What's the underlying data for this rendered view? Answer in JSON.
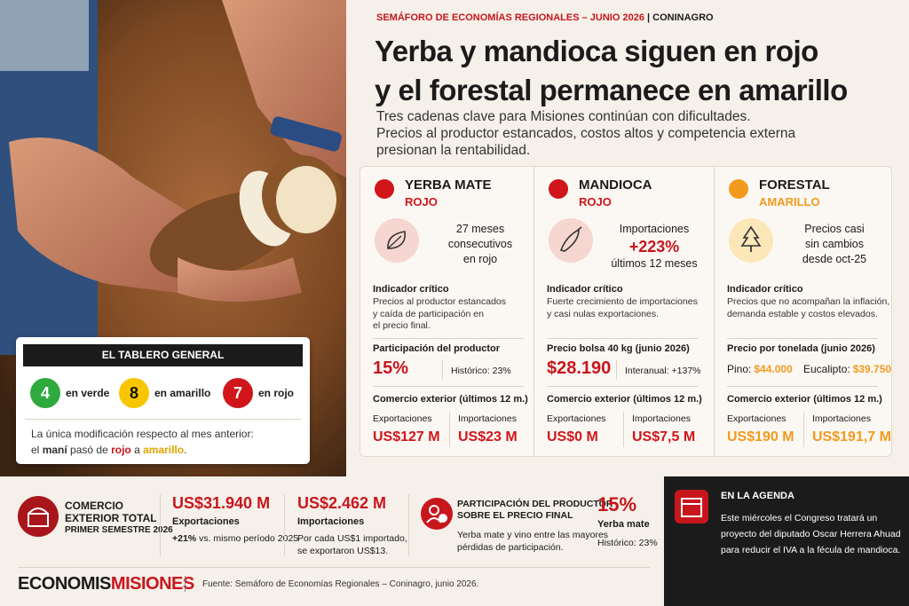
{
  "header": {
    "kicker": "SEMÁFORO DE ECONOMÍAS REGIONALES – JUNIO 2026",
    "source": "CONINAGRO",
    "title_lines": [
      "Yerba y mandioca siguen en rojo",
      "y el forestal permanece en amarillo"
    ],
    "subtitle_lines": [
      "Tres cadenas clave para Misiones continúan con dificultades.",
      "Precios al productor estancados, costos altos y competencia externa",
      "presionan la rentabilidad."
    ]
  },
  "cards": [
    {
      "name": "YERBA MATE",
      "status": "ROJO",
      "color": "#d0151b",
      "highlight_lines": [
        "27 meses",
        "consecutivos",
        "en rojo"
      ],
      "indicator_title": "Indicador crítico",
      "indicator_lines": [
        "Precios al productor estancados",
        "y caída de participación en",
        "el precio final."
      ],
      "metric_title": "Participación del productor",
      "metric_value": "15%",
      "metric_extra": "Histórico: 23%",
      "trade_title": "Comercio exterior (últimos 12 m.)",
      "export_label": "Exportaciones",
      "export_value": "US$127 M",
      "import_label": "Importaciones",
      "import_value": "US$23 M"
    },
    {
      "name": "MANDIOCA",
      "status": "ROJO",
      "color": "#d0151b",
      "highlight_lines": [
        "Importaciones",
        "+223%",
        "últimos 12 meses"
      ],
      "indicator_title": "Indicador crítico",
      "indicator_lines": [
        "Fuerte crecimiento de importaciones",
        "y casi nulas exportaciones."
      ],
      "metric_title": "Precio bolsa 40 kg (junio 2026)",
      "metric_value": "$28.190",
      "metric_extra": "Interanual: +137%",
      "trade_title": "Comercio exterior (últimos 12 m.)",
      "export_label": "Exportaciones",
      "export_value": "US$0 M",
      "import_label": "Importaciones",
      "import_value": "US$7,5 M"
    },
    {
      "name": "FORESTAL",
      "status": "AMARILLO",
      "color": "#f29a1d",
      "highlight_lines": [
        "Precios casi",
        "sin cambios",
        "desde oct-25"
      ],
      "indicator_title": "Indicador crítico",
      "indicator_lines": [
        "Precios que no acompañan la inflación,",
        "demanda estable y costos elevados."
      ],
      "metric_title": "Precio por tonelada (junio 2026)",
      "prices": [
        {
          "label": "Pino:",
          "value": "$44.000"
        },
        {
          "label": "Eucalipto:",
          "value": "$39.750"
        }
      ],
      "trade_title": "Comercio exterior (últimos 12 m.)",
      "export_label": "Exportaciones",
      "export_value": "US$190 M",
      "import_label": "Importaciones",
      "import_value": "US$191,7 M"
    }
  ],
  "tablero": {
    "title": "EL TABLERO GENERAL",
    "counts": [
      {
        "number": "4",
        "label": "en verde",
        "color": "#2eaa3f"
      },
      {
        "number": "8",
        "label": "en amarillo",
        "color": "#f7c600"
      },
      {
        "number": "7",
        "label": "en rojo",
        "color": "#d0151b"
      }
    ],
    "note_line": "La única modificación respecto al mes anterior:",
    "note_parts": [
      "el ",
      "maní",
      " pasó de ",
      "rojo",
      " a ",
      "amarillo",
      "."
    ]
  },
  "trade_total": {
    "title_lines": [
      "COMERCIO",
      "EXTERIOR TOTAL"
    ],
    "period": "PRIMER SEMESTRE 2026",
    "exports_value": "US$31.940 M",
    "exports_label": "Exportaciones",
    "exports_change": "+21%",
    "exports_change_text": " vs. mismo período 2025",
    "imports_value": "US$2.462 M",
    "imports_label": "Importaciones",
    "imports_note_lines": [
      "Por cada US$1 importado,",
      "se exportaron US$13."
    ]
  },
  "participation": {
    "title_lines": [
      "PARTICIPACIÓN DEL PRODUCTOR",
      "SOBRE EL PRECIO FINAL"
    ],
    "text_lines": [
      "Yerba mate y vino entre las mayores",
      "pérdidas de participación."
    ],
    "value": "15%",
    "value_label": "Yerba mate",
    "historic": "Histórico: 23%"
  },
  "agenda": {
    "title": "EN LA AGENDA",
    "lines": [
      "Este miércoles el Congreso tratará un",
      "proyecto del diputado Oscar Herrera Ahuad",
      "para reducir el IVA a la fécula de mandioca."
    ]
  },
  "footer": {
    "logo_parts": [
      "ECONOMIS",
      "MISIONES"
    ],
    "source": "Fuente: Semáforo de Economías Regionales – Coninagro, junio 2026."
  }
}
